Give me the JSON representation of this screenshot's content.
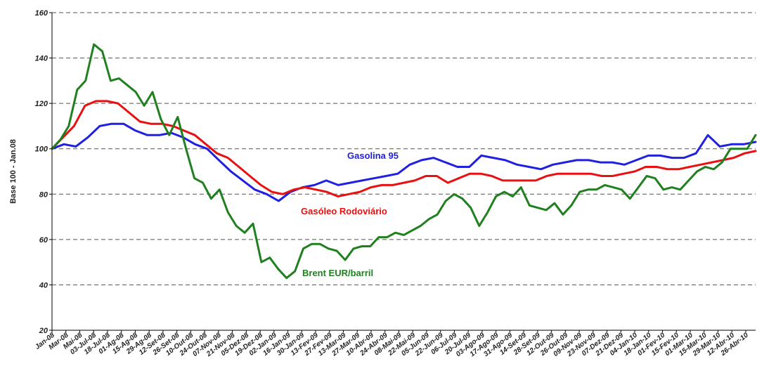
{
  "chart_data": {
    "type": "line",
    "ylabel": "Base 100 - Jan.08",
    "xlabel": "",
    "ylim": [
      20,
      160
    ],
    "yticks": [
      20,
      40,
      60,
      80,
      100,
      120,
      140,
      160
    ],
    "grid": "horizontal dashed",
    "x_tick_labels": [
      "Jan-08",
      "Mar-08",
      "Mai-08",
      "03-Jul-08",
      "18-Jul-08",
      "01-Ag-08",
      "15-Ag-08",
      "29-Ag-08",
      "12-Set-08",
      "26-Set-08",
      "10-Out-08",
      "24-Out-08",
      "07-Nov-08",
      "21-Nov-08",
      "05-Dez-08",
      "19-Dez-08",
      "02-Jan-09",
      "16-Jan-09",
      "30-Jan-09",
      "13-Fev-09",
      "27-Fev-09",
      "13-Mar-09",
      "27-Mar-09",
      "10-Abr-09",
      "24-Abr-09",
      "08-Mai-09",
      "22-Mai-09",
      "05-Jun-09",
      "22-Jun-09",
      "06-Jul-09",
      "20-Jul-09",
      "03-Ago-09",
      "17-Ago-09",
      "31-Ago-09",
      "14-Set-09",
      "28-Set-09",
      "12-Out-09",
      "26-Out-09",
      "09-Nov-09",
      "23-Nov-09",
      "07-Dez-09",
      "21-Dez-09",
      "04-Jan-10",
      "18-Jan-10",
      "01-Fev-10",
      "15-Fev-10",
      "01-Mar-10",
      "15-Mar-10",
      "29-Mar-10",
      "12-Abr-10",
      "26-Abr-10"
    ],
    "series": [
      {
        "name": "Gasolina 95",
        "color": "#2020e0",
        "values": [
          100,
          102,
          101,
          105,
          110,
          111,
          111,
          108,
          106,
          106,
          107,
          105,
          102,
          100,
          95,
          90,
          86,
          82,
          80,
          77,
          81,
          83,
          84,
          86,
          84,
          85,
          86,
          87,
          88,
          89,
          93,
          95,
          96,
          94,
          92,
          92,
          97,
          96,
          95,
          93,
          92,
          91,
          93,
          94,
          95,
          95,
          94,
          94,
          93,
          95,
          97,
          97,
          96,
          96,
          98,
          106,
          101,
          102,
          102,
          103
        ]
      },
      {
        "name": "Gasóleo Rodoviário",
        "color": "#e81010",
        "values": [
          100,
          105,
          110,
          119,
          121,
          121,
          120,
          116,
          112,
          111,
          111,
          110,
          108,
          106,
          102,
          98,
          96,
          92,
          88,
          84,
          81,
          80,
          82,
          83,
          82,
          81,
          79,
          80,
          81,
          83,
          84,
          84,
          85,
          86,
          88,
          88,
          85,
          87,
          89,
          89,
          88,
          86,
          86,
          86,
          86,
          88,
          89,
          89,
          89,
          89,
          88,
          88,
          89,
          90,
          92,
          92,
          91,
          91,
          92,
          93,
          94,
          95,
          96,
          98,
          99
        ]
      },
      {
        "name": "Brent EUR/barril",
        "color": "#208020",
        "values": [
          100,
          104,
          110,
          126,
          130,
          146,
          143,
          130,
          131,
          128,
          125,
          119,
          125,
          113,
          106,
          114,
          100,
          87,
          85,
          78,
          82,
          72,
          66,
          63,
          67,
          50,
          52,
          47,
          43,
          46,
          56,
          58,
          58,
          56,
          55,
          51,
          56,
          57,
          57,
          61,
          61,
          63,
          62,
          64,
          66,
          69,
          71,
          77,
          80,
          78,
          74,
          66,
          72,
          79,
          81,
          79,
          83,
          75,
          74,
          73,
          76,
          71,
          75,
          81,
          82,
          82,
          84,
          83,
          82,
          78,
          83,
          88,
          87,
          82,
          83,
          82,
          86,
          90,
          92,
          91,
          94,
          100,
          100,
          100,
          106
        ]
      }
    ],
    "series_labels": [
      "Gasolina 95",
      "Gasóleo Rodoviário",
      "Brent EUR/barril"
    ]
  }
}
